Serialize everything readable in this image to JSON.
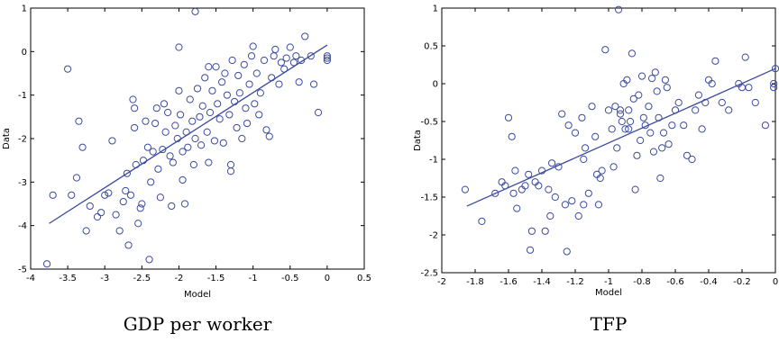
{
  "chart_data": [
    {
      "type": "scatter",
      "title": "",
      "caption": "GDP per worker",
      "xlabel": "Model",
      "ylabel": "Data",
      "xlim": [
        -4,
        0.5
      ],
      "ylim": [
        -5,
        1
      ],
      "xticks": [
        "-4",
        "-3.5",
        "-3",
        "-2.5",
        "-2",
        "-1.5",
        "-1",
        "-0.5",
        "0",
        "0.5"
      ],
      "yticks": [
        "1",
        "0",
        "-1",
        "-2",
        "-3",
        "-4",
        "-5"
      ],
      "grid": false,
      "marker_color": "#3b4aa0",
      "fit_line": {
        "x": [
          -3.75,
          0
        ],
        "y": [
          -3.95,
          0.15
        ]
      },
      "points": [
        [
          -3.78,
          -4.88
        ],
        [
          -3.5,
          -0.4
        ],
        [
          -3.35,
          -1.6
        ],
        [
          -3.3,
          -2.2
        ],
        [
          -3.38,
          -2.9
        ],
        [
          -3.45,
          -3.3
        ],
        [
          -3.7,
          -3.3
        ],
        [
          -3.25,
          -4.12
        ],
        [
          -3.2,
          -3.55
        ],
        [
          -3.1,
          -3.8
        ],
        [
          -3.05,
          -3.7
        ],
        [
          -3.0,
          -3.3
        ],
        [
          -2.95,
          -3.25
        ],
        [
          -2.9,
          -2.05
        ],
        [
          -2.85,
          -3.75
        ],
        [
          -2.8,
          -4.12
        ],
        [
          -2.75,
          -3.45
        ],
        [
          -2.72,
          -3.2
        ],
        [
          -2.7,
          -2.8
        ],
        [
          -2.68,
          -4.45
        ],
        [
          -2.65,
          -3.3
        ],
        [
          -2.62,
          -1.1
        ],
        [
          -2.6,
          -1.3
        ],
        [
          -2.58,
          -2.6
        ],
        [
          -2.55,
          -3.95
        ],
        [
          -2.52,
          -3.6
        ],
        [
          -2.5,
          -3.5
        ],
        [
          -2.48,
          -2.5
        ],
        [
          -2.45,
          -1.6
        ],
        [
          -2.42,
          -2.2
        ],
        [
          -2.4,
          -4.78
        ],
        [
          -2.38,
          -3.0
        ],
        [
          -2.35,
          -2.3
        ],
        [
          -2.32,
          -1.65
        ],
        [
          -2.3,
          -1.3
        ],
        [
          -2.28,
          -2.7
        ],
        [
          -2.25,
          -3.35
        ],
        [
          -2.22,
          -2.25
        ],
        [
          -2.2,
          -1.2
        ],
        [
          -2.18,
          -1.85
        ],
        [
          -2.15,
          -1.4
        ],
        [
          -2.12,
          -2.4
        ],
        [
          -2.1,
          -3.55
        ],
        [
          -2.08,
          -2.55
        ],
        [
          -2.05,
          -1.7
        ],
        [
          -2.02,
          -2.0
        ],
        [
          -2.0,
          -0.9
        ],
        [
          -1.98,
          -1.45
        ],
        [
          -1.95,
          -2.3
        ],
        [
          -1.92,
          -3.5
        ],
        [
          -1.9,
          -1.85
        ],
        [
          -1.88,
          -2.2
        ],
        [
          -1.85,
          -1.1
        ],
        [
          -1.82,
          -1.6
        ],
        [
          -1.8,
          -2.6
        ],
        [
          -1.78,
          -2.0
        ],
        [
          -1.75,
          -0.85
        ],
        [
          -1.72,
          -1.5
        ],
        [
          -1.7,
          -2.15
        ],
        [
          -1.68,
          -1.25
        ],
        [
          -1.65,
          -0.6
        ],
        [
          -1.62,
          -1.85
        ],
        [
          -1.6,
          -2.55
        ],
        [
          -1.58,
          -1.4
        ],
        [
          -1.55,
          -0.9
        ],
        [
          -1.52,
          -2.05
        ],
        [
          -1.5,
          -0.35
        ],
        [
          -1.48,
          -1.2
        ],
        [
          -1.45,
          -1.55
        ],
        [
          -1.42,
          -0.7
        ],
        [
          -1.4,
          -2.1
        ],
        [
          -1.38,
          -0.5
        ],
        [
          -1.35,
          -1.0
        ],
        [
          -1.32,
          -1.45
        ],
        [
          -1.3,
          -2.6
        ],
        [
          -1.28,
          -0.2
        ],
        [
          -1.25,
          -1.15
        ],
        [
          -1.22,
          -1.75
        ],
        [
          -1.2,
          -0.55
        ],
        [
          -1.18,
          -0.95
        ],
        [
          -1.15,
          -2.0
        ],
        [
          -1.12,
          -0.3
        ],
        [
          -1.1,
          -1.3
        ],
        [
          -1.08,
          -1.65
        ],
        [
          -1.05,
          -0.75
        ],
        [
          -1.02,
          -0.1
        ],
        [
          -1.0,
          0.12
        ],
        [
          -0.98,
          -1.2
        ],
        [
          -0.95,
          -0.5
        ],
        [
          -0.92,
          -1.45
        ],
        [
          -0.9,
          -0.95
        ],
        [
          -0.85,
          -0.2
        ],
        [
          -0.82,
          -1.8
        ],
        [
          -0.78,
          -1.95
        ],
        [
          -0.75,
          -0.6
        ],
        [
          -0.72,
          -0.1
        ],
        [
          -0.7,
          0.05
        ],
        [
          -0.65,
          -0.75
        ],
        [
          -0.62,
          -0.25
        ],
        [
          -0.58,
          -0.4
        ],
        [
          -0.55,
          -0.15
        ],
        [
          -0.5,
          0.1
        ],
        [
          -0.45,
          -0.25
        ],
        [
          -0.42,
          -0.1
        ],
        [
          -0.38,
          -0.7
        ],
        [
          -0.35,
          -0.2
        ],
        [
          -0.3,
          0.35
        ],
        [
          -0.22,
          -0.1
        ],
        [
          -0.18,
          -0.75
        ],
        [
          -0.12,
          -1.4
        ],
        [
          0.0,
          -0.1
        ],
        [
          0.0,
          -0.15
        ],
        [
          0.0,
          -0.2
        ],
        [
          -1.78,
          0.92
        ],
        [
          -2.0,
          0.1
        ],
        [
          -2.6,
          -1.75
        ],
        [
          -1.95,
          -2.95
        ],
        [
          -1.3,
          -2.75
        ],
        [
          -1.6,
          -0.35
        ]
      ]
    },
    {
      "type": "scatter",
      "title": "",
      "caption": "TFP",
      "xlabel": "Model",
      "ylabel": "Data",
      "xlim": [
        -2,
        0
      ],
      "ylim": [
        -2.5,
        1
      ],
      "xticks": [
        "-2",
        "-1.8",
        "-1.6",
        "-1.4",
        "-1.2",
        "-1",
        "-0.8",
        "-0.6",
        "-0.4",
        "-0.2",
        "0"
      ],
      "yticks": [
        "1",
        "0.5",
        "0",
        "-0.5",
        "-1",
        "-1.5",
        "-2",
        "-2.5"
      ],
      "grid": false,
      "marker_color": "#3b4aa0",
      "fit_line": {
        "x": [
          -1.85,
          0
        ],
        "y": [
          -1.62,
          0.2
        ]
      },
      "points": [
        [
          -1.86,
          -1.4
        ],
        [
          -1.76,
          -1.82
        ],
        [
          -1.68,
          -1.45
        ],
        [
          -1.64,
          -1.3
        ],
        [
          -1.62,
          -1.35
        ],
        [
          -1.6,
          -0.45
        ],
        [
          -1.58,
          -0.7
        ],
        [
          -1.56,
          -1.15
        ],
        [
          -1.55,
          -1.65
        ],
        [
          -1.52,
          -1.4
        ],
        [
          -1.5,
          -1.35
        ],
        [
          -1.48,
          -1.2
        ],
        [
          -1.47,
          -2.2
        ],
        [
          -1.46,
          -1.95
        ],
        [
          -1.44,
          -1.3
        ],
        [
          -1.42,
          -1.35
        ],
        [
          -1.4,
          -1.15
        ],
        [
          -1.38,
          -1.95
        ],
        [
          -1.36,
          -1.4
        ],
        [
          -1.34,
          -1.05
        ],
        [
          -1.32,
          -1.5
        ],
        [
          -1.3,
          -1.1
        ],
        [
          -1.28,
          -0.4
        ],
        [
          -1.26,
          -1.6
        ],
        [
          -1.25,
          -2.22
        ],
        [
          -1.24,
          -0.55
        ],
        [
          -1.22,
          -1.55
        ],
        [
          -1.2,
          -0.65
        ],
        [
          -1.18,
          -1.75
        ],
        [
          -1.16,
          -0.45
        ],
        [
          -1.15,
          -1.0
        ],
        [
          -1.14,
          -0.85
        ],
        [
          -1.12,
          -1.45
        ],
        [
          -1.1,
          -0.3
        ],
        [
          -1.08,
          -0.7
        ],
        [
          -1.06,
          -1.6
        ],
        [
          -1.05,
          -1.25
        ],
        [
          -1.04,
          -1.15
        ],
        [
          -1.02,
          0.45
        ],
        [
          -1.0,
          -0.35
        ],
        [
          -0.98,
          -0.6
        ],
        [
          -0.97,
          -1.1
        ],
        [
          -0.96,
          -0.3
        ],
        [
          -0.95,
          -0.85
        ],
        [
          -0.94,
          0.98
        ],
        [
          -0.93,
          -0.4
        ],
        [
          -0.92,
          -0.5
        ],
        [
          -0.91,
          0.0
        ],
        [
          -0.9,
          -0.6
        ],
        [
          -0.89,
          0.05
        ],
        [
          -0.88,
          -0.35
        ],
        [
          -0.87,
          -0.5
        ],
        [
          -0.86,
          0.4
        ],
        [
          -0.85,
          -0.2
        ],
        [
          -0.84,
          -1.4
        ],
        [
          -0.83,
          -0.95
        ],
        [
          -0.82,
          -0.15
        ],
        [
          -0.81,
          -0.75
        ],
        [
          -0.8,
          0.1
        ],
        [
          -0.79,
          -0.45
        ],
        [
          -0.78,
          -0.55
        ],
        [
          -0.76,
          -0.3
        ],
        [
          -0.75,
          -0.65
        ],
        [
          -0.74,
          0.07
        ],
        [
          -0.73,
          -0.9
        ],
        [
          -0.72,
          0.15
        ],
        [
          -0.71,
          -0.1
        ],
        [
          -0.7,
          -0.45
        ],
        [
          -0.69,
          -1.25
        ],
        [
          -0.68,
          -0.85
        ],
        [
          -0.67,
          -0.65
        ],
        [
          -0.66,
          0.05
        ],
        [
          -0.65,
          -0.05
        ],
        [
          -0.64,
          -0.8
        ],
        [
          -0.62,
          -0.55
        ],
        [
          -0.6,
          -0.35
        ],
        [
          -0.58,
          -0.25
        ],
        [
          -0.55,
          -0.55
        ],
        [
          -0.53,
          -0.95
        ],
        [
          -0.5,
          -1.0
        ],
        [
          -0.48,
          -0.35
        ],
        [
          -0.46,
          -0.15
        ],
        [
          -0.44,
          -0.6
        ],
        [
          -0.42,
          -0.25
        ],
        [
          -0.4,
          0.05
        ],
        [
          -0.38,
          0.0
        ],
        [
          -0.36,
          0.3
        ],
        [
          -0.32,
          -0.25
        ],
        [
          -0.28,
          -0.35
        ],
        [
          -0.22,
          0.0
        ],
        [
          -0.2,
          -0.05
        ],
        [
          -0.18,
          0.35
        ],
        [
          -0.16,
          -0.05
        ],
        [
          -0.12,
          -0.25
        ],
        [
          -0.06,
          -0.55
        ],
        [
          -0.01,
          0.0
        ],
        [
          -0.01,
          -0.05
        ],
        [
          0.0,
          0.2
        ],
        [
          -1.57,
          -1.45
        ],
        [
          -1.35,
          -1.75
        ],
        [
          -1.15,
          -1.6
        ],
        [
          -1.07,
          -1.2
        ],
        [
          -0.93,
          -0.35
        ],
        [
          -0.88,
          -0.6
        ]
      ]
    }
  ]
}
